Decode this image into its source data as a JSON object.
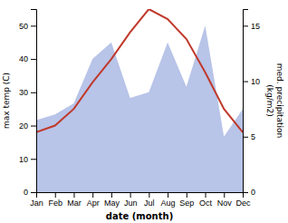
{
  "chart_data": {
    "type": "line",
    "xlabel": "date (month)",
    "ylabel": "max temp (C)",
    "y2label": "med. precipitation\n(kg/m2)",
    "categories": [
      "Jan",
      "Feb",
      "Mar",
      "Apr",
      "May",
      "Jun",
      "Jul",
      "Aug",
      "Sep",
      "Oct",
      "Nov",
      "Dec"
    ],
    "series": [
      {
        "type": "area",
        "axis": "y2",
        "color": "#b8c4e8",
        "values": [
          6.5,
          7.0,
          8.0,
          12.0,
          13.5,
          8.5,
          9.0,
          13.5,
          9.5,
          15.0,
          5.0,
          7.5
        ]
      },
      {
        "type": "line",
        "color": "#c0392b",
        "values": [
          18.0,
          20.0,
          25.0,
          33.0,
          40.0,
          48.0,
          55.0,
          52.0,
          46.0,
          36.0,
          25.0,
          18.0
        ]
      }
    ],
    "ylim": [
      0,
      55
    ],
    "yticks": [
      0,
      10,
      20,
      30,
      40,
      50
    ],
    "y2lim": [
      0,
      16.5
    ],
    "y2ticks": [
      0,
      5,
      10,
      15
    ],
    "grid": false
  }
}
